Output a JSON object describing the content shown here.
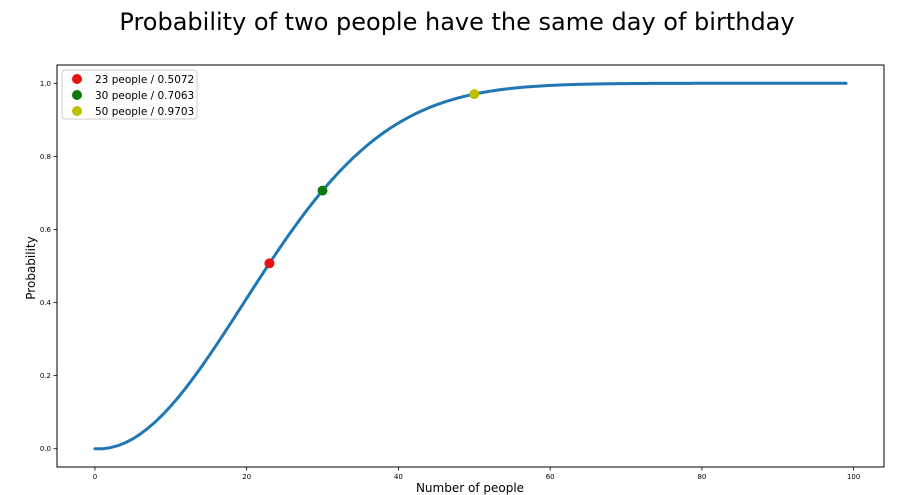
{
  "chart_data": {
    "type": "line",
    "title": "Probability of two people have the same day of birthday",
    "xlabel": "Number of people",
    "ylabel": "Probability",
    "xlim": [
      -5,
      104
    ],
    "ylim": [
      -0.05,
      1.05
    ],
    "xticks": [
      0,
      20,
      40,
      60,
      80,
      100
    ],
    "xtick_labels": [
      "0",
      "20",
      "40",
      "60",
      "80",
      "100"
    ],
    "yticks": [
      0.0,
      0.2,
      0.4,
      0.6,
      0.8,
      1.0
    ],
    "ytick_labels": [
      "0.0",
      "0.2",
      "0.4",
      "0.6",
      "0.8",
      "1.0"
    ],
    "grid": false,
    "legend_position": "top-left",
    "series": [
      {
        "color": "#1f77b4",
        "x_range": [
          0,
          99
        ],
        "formula": "1 - prod_{k=0}^{n-1} (365-k)/365"
      }
    ],
    "highlight_points": [
      {
        "name": "23 people / 0.5072",
        "x": 23,
        "y": 0.5072,
        "color": "#e8110f"
      },
      {
        "name": "30 people / 0.7063",
        "x": 30,
        "y": 0.7063,
        "color": "#0d7a0d"
      },
      {
        "name": "50 people / 0.9703",
        "x": 50,
        "y": 0.9703,
        "color": "#bfbf00"
      }
    ]
  }
}
